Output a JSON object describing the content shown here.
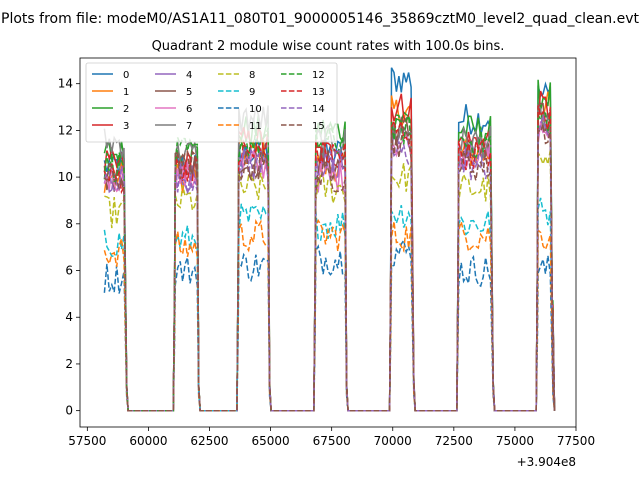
{
  "figure": {
    "suptitle": "Plots from file: modeM0/AS1A11_080T01_9000005146_35869cztM0_level2_quad_clean.evt",
    "title": "Quadrant 2 module wise count rates with 100.0s bins.",
    "x_offset_label": "+3.904e8"
  },
  "chart_data": {
    "type": "line",
    "title": "Quadrant 2 module wise count rates with 100.0s bins.",
    "xlabel": "",
    "ylabel": "",
    "x_offset": 390400000,
    "xlim": [
      57200,
      77500
    ],
    "ylim": [
      -0.7,
      15.1
    ],
    "xticks": [
      57500,
      60000,
      62500,
      65000,
      67500,
      70000,
      72500,
      75000,
      77500
    ],
    "yticks": [
      0,
      2,
      4,
      6,
      8,
      10,
      12,
      14
    ],
    "legend_location": "top-left",
    "legend_columns": 4,
    "active_windows": [
      {
        "rise": [
          59000,
          59100
        ],
        "fall": [
          61050,
          61250
        ],
        "start": 58200,
        "end": 59050
      },
      {
        "rise": [
          61250,
          61400
        ],
        "fall": [
          63650,
          63800
        ],
        "start": 61100,
        "end": 62000
      },
      {
        "rise": [
          63800,
          63900
        ],
        "fall": [
          66900,
          67050
        ],
        "start": 63700,
        "end": 64900
      },
      {
        "rise": [
          67050,
          67150
        ],
        "fall": [
          69950,
          70100
        ],
        "start": 66850,
        "end": 68050
      },
      {
        "rise": [
          70100,
          70200
        ],
        "fall": [
          72700,
          72800
        ],
        "start": 69950,
        "end": 70800
      },
      {
        "rise": [
          72800,
          72900
        ],
        "fall": [
          75950,
          76050
        ],
        "start": 72700,
        "end": 74050
      },
      {
        "rise": [
          76050,
          76150
        ],
        "fall": [
          77500,
          77500
        ],
        "start": 75950,
        "end": 76500
      }
    ],
    "series": [
      {
        "name": "0",
        "color": "#1f77b4",
        "dash": "solid",
        "level": [
          10.5,
          10.5,
          11.0,
          11.0,
          14.2,
          12.5,
          13.5
        ]
      },
      {
        "name": "1",
        "color": "#ff7f0e",
        "dash": "solid",
        "level": [
          10.0,
          10.0,
          11.0,
          10.5,
          12.8,
          11.0,
          13.0
        ]
      },
      {
        "name": "2",
        "color": "#2ca02c",
        "dash": "solid",
        "level": [
          11.0,
          11.0,
          12.0,
          12.0,
          12.5,
          12.0,
          13.5
        ]
      },
      {
        "name": "3",
        "color": "#d62728",
        "dash": "solid",
        "level": [
          10.5,
          10.5,
          11.5,
          11.0,
          13.0,
          11.5,
          13.0
        ]
      },
      {
        "name": "4",
        "color": "#9467bd",
        "dash": "solid",
        "level": [
          9.5,
          10.0,
          10.5,
          10.5,
          11.5,
          11.0,
          12.5
        ]
      },
      {
        "name": "5",
        "color": "#8c564b",
        "dash": "solid",
        "level": [
          10.0,
          10.5,
          10.5,
          10.5,
          12.0,
          11.0,
          12.5
        ]
      },
      {
        "name": "6",
        "color": "#e377c2",
        "dash": "solid",
        "level": [
          10.0,
          10.0,
          10.5,
          10.0,
          11.5,
          11.0,
          12.0
        ]
      },
      {
        "name": "7",
        "color": "#7f7f7f",
        "dash": "solid",
        "level": [
          11.5,
          11.0,
          12.5,
          11.5,
          12.0,
          11.5,
          12.5
        ]
      },
      {
        "name": "8",
        "color": "#bcbd22",
        "dash": "dashed",
        "level": [
          8.5,
          9.0,
          9.5,
          9.5,
          10.0,
          9.5,
          10.5
        ]
      },
      {
        "name": "9",
        "color": "#17becf",
        "dash": "dashed",
        "level": [
          7.2,
          7.3,
          8.2,
          8.0,
          8.5,
          8.0,
          8.5
        ]
      },
      {
        "name": "10",
        "color": "#1f77b4",
        "dash": "dashed",
        "level": [
          5.7,
          6.0,
          6.2,
          6.5,
          6.8,
          6.0,
          6.0
        ]
      },
      {
        "name": "11",
        "color": "#ff7f0e",
        "dash": "dashed",
        "level": [
          6.8,
          7.0,
          7.5,
          7.5,
          7.5,
          7.5,
          7.5
        ]
      },
      {
        "name": "12",
        "color": "#2ca02c",
        "dash": "dashed",
        "level": [
          10.5,
          11.0,
          11.5,
          11.5,
          12.0,
          11.5,
          12.5
        ]
      },
      {
        "name": "13",
        "color": "#d62728",
        "dash": "dashed",
        "level": [
          10.0,
          10.5,
          11.0,
          11.0,
          12.0,
          11.0,
          12.5
        ]
      },
      {
        "name": "14",
        "color": "#9467bd",
        "dash": "dashed",
        "level": [
          10.0,
          10.0,
          10.5,
          10.5,
          11.0,
          10.5,
          12.0
        ]
      },
      {
        "name": "15",
        "color": "#8c564b",
        "dash": "dashed",
        "level": [
          10.0,
          10.5,
          10.5,
          10.0,
          11.5,
          10.5,
          12.0
        ]
      }
    ]
  }
}
